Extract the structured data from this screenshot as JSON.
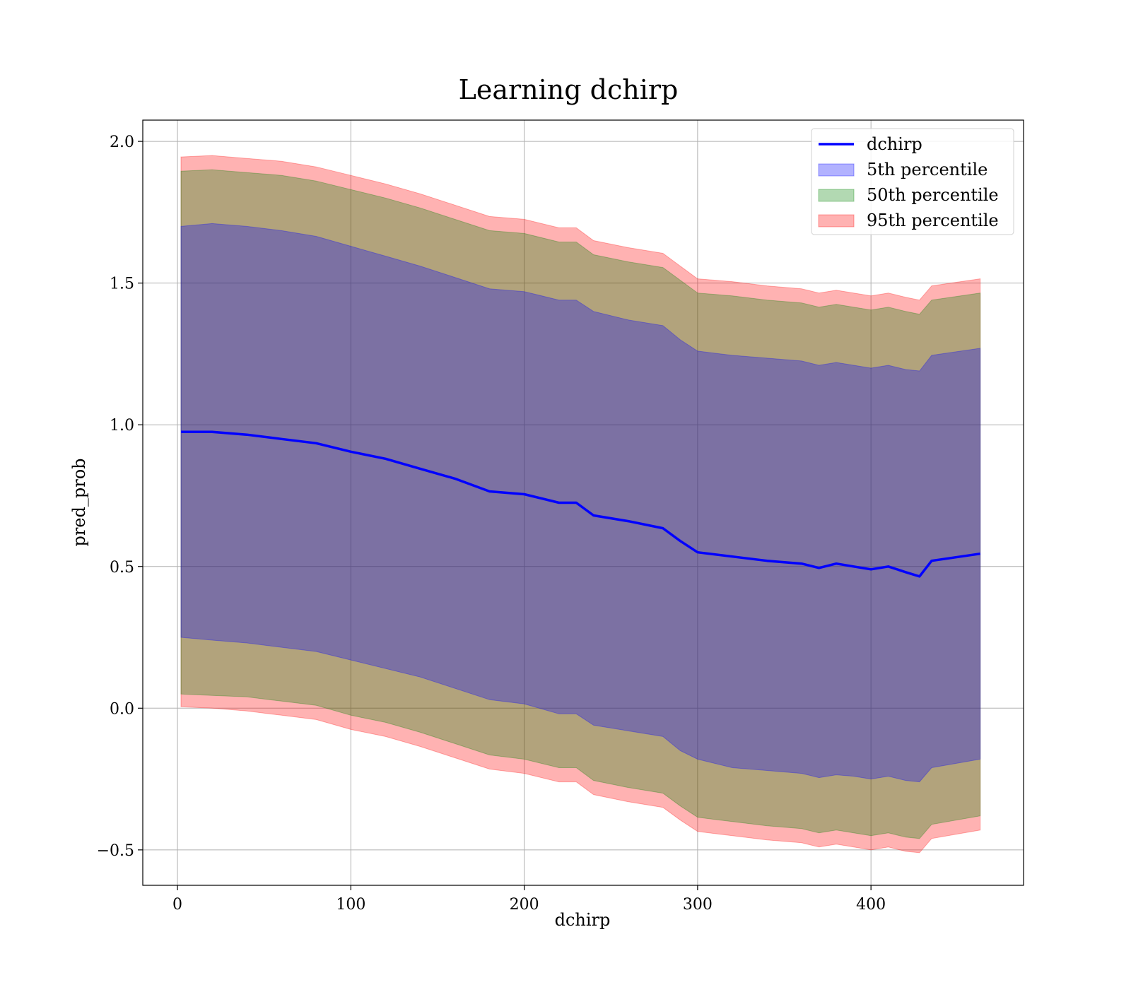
{
  "chart_data": {
    "type": "area",
    "title": "Learning dchirp",
    "xlabel": "dchirp",
    "ylabel": "pred_prob",
    "xlim": [
      -20,
      488
    ],
    "ylim": [
      -0.625,
      2.075
    ],
    "xticks": [
      0,
      100,
      200,
      300,
      400
    ],
    "yticks": [
      -0.5,
      0.0,
      0.5,
      1.0,
      1.5,
      2.0
    ],
    "xtick_labels": [
      "0",
      "100",
      "200",
      "300",
      "400"
    ],
    "ytick_labels": [
      "−0.5",
      "0.0",
      "0.5",
      "1.0",
      "1.5",
      "2.0"
    ],
    "grid": true,
    "legend_position": "top-right",
    "legend": [
      {
        "label": "dchirp",
        "kind": "line",
        "color": "#0000ff"
      },
      {
        "label": "5th percentile",
        "kind": "patch",
        "color": "#0000ff"
      },
      {
        "label": "50th percentile",
        "kind": "patch",
        "color": "#008000"
      },
      {
        "label": "95th percentile",
        "kind": "patch",
        "color": "#ff0000"
      }
    ],
    "colors": {
      "line": "#0000ff",
      "band_5": "#0000ff",
      "band_50": "#008000",
      "band_95": "#ff0000"
    },
    "x": [
      2,
      20,
      40,
      60,
      80,
      100,
      120,
      140,
      160,
      180,
      200,
      220,
      230,
      240,
      260,
      280,
      290,
      300,
      320,
      340,
      360,
      370,
      380,
      390,
      400,
      410,
      420,
      428,
      435,
      463
    ],
    "line": [
      0.975,
      0.975,
      0.965,
      0.95,
      0.935,
      0.905,
      0.88,
      0.845,
      0.81,
      0.765,
      0.755,
      0.725,
      0.725,
      0.68,
      0.66,
      0.635,
      0.59,
      0.55,
      0.535,
      0.52,
      0.51,
      0.495,
      0.51,
      0.5,
      0.49,
      0.5,
      0.48,
      0.465,
      0.52,
      0.545
    ],
    "band_5": [
      {
        "upper": 1.7,
        "lower": 0.25
      },
      {
        "upper": 1.71,
        "lower": 0.24
      },
      {
        "upper": 1.7,
        "lower": 0.23
      },
      {
        "upper": 1.685,
        "lower": 0.215
      },
      {
        "upper": 1.665,
        "lower": 0.2
      },
      {
        "upper": 1.63,
        "lower": 0.17
      },
      {
        "upper": 1.595,
        "lower": 0.14
      },
      {
        "upper": 1.56,
        "lower": 0.11
      },
      {
        "upper": 1.52,
        "lower": 0.07
      },
      {
        "upper": 1.48,
        "lower": 0.03
      },
      {
        "upper": 1.47,
        "lower": 0.015
      },
      {
        "upper": 1.44,
        "lower": -0.02
      },
      {
        "upper": 1.44,
        "lower": -0.02
      },
      {
        "upper": 1.4,
        "lower": -0.06
      },
      {
        "upper": 1.37,
        "lower": -0.08
      },
      {
        "upper": 1.35,
        "lower": -0.1
      },
      {
        "upper": 1.3,
        "lower": -0.15
      },
      {
        "upper": 1.26,
        "lower": -0.18
      },
      {
        "upper": 1.245,
        "lower": -0.21
      },
      {
        "upper": 1.235,
        "lower": -0.22
      },
      {
        "upper": 1.225,
        "lower": -0.23
      },
      {
        "upper": 1.21,
        "lower": -0.245
      },
      {
        "upper": 1.22,
        "lower": -0.235
      },
      {
        "upper": 1.21,
        "lower": -0.24
      },
      {
        "upper": 1.2,
        "lower": -0.25
      },
      {
        "upper": 1.21,
        "lower": -0.24
      },
      {
        "upper": 1.195,
        "lower": -0.255
      },
      {
        "upper": 1.19,
        "lower": -0.26
      },
      {
        "upper": 1.245,
        "lower": -0.21
      },
      {
        "upper": 1.27,
        "lower": -0.18
      }
    ],
    "band_50": [
      {
        "upper": 1.895,
        "lower": 0.05
      },
      {
        "upper": 1.9,
        "lower": 0.045
      },
      {
        "upper": 1.89,
        "lower": 0.04
      },
      {
        "upper": 1.88,
        "lower": 0.025
      },
      {
        "upper": 1.86,
        "lower": 0.01
      },
      {
        "upper": 1.83,
        "lower": -0.025
      },
      {
        "upper": 1.8,
        "lower": -0.05
      },
      {
        "upper": 1.765,
        "lower": -0.085
      },
      {
        "upper": 1.725,
        "lower": -0.125
      },
      {
        "upper": 1.685,
        "lower": -0.165
      },
      {
        "upper": 1.675,
        "lower": -0.18
      },
      {
        "upper": 1.645,
        "lower": -0.21
      },
      {
        "upper": 1.645,
        "lower": -0.21
      },
      {
        "upper": 1.6,
        "lower": -0.255
      },
      {
        "upper": 1.575,
        "lower": -0.28
      },
      {
        "upper": 1.555,
        "lower": -0.3
      },
      {
        "upper": 1.51,
        "lower": -0.345
      },
      {
        "upper": 1.465,
        "lower": -0.385
      },
      {
        "upper": 1.455,
        "lower": -0.4
      },
      {
        "upper": 1.44,
        "lower": -0.415
      },
      {
        "upper": 1.43,
        "lower": -0.425
      },
      {
        "upper": 1.415,
        "lower": -0.44
      },
      {
        "upper": 1.425,
        "lower": -0.43
      },
      {
        "upper": 1.415,
        "lower": -0.44
      },
      {
        "upper": 1.405,
        "lower": -0.45
      },
      {
        "upper": 1.415,
        "lower": -0.44
      },
      {
        "upper": 1.4,
        "lower": -0.455
      },
      {
        "upper": 1.39,
        "lower": -0.46
      },
      {
        "upper": 1.44,
        "lower": -0.41
      },
      {
        "upper": 1.465,
        "lower": -0.38
      }
    ],
    "band_95": [
      {
        "upper": 1.945,
        "lower": 0.005
      },
      {
        "upper": 1.95,
        "lower": 0.0
      },
      {
        "upper": 1.94,
        "lower": -0.01
      },
      {
        "upper": 1.93,
        "lower": -0.025
      },
      {
        "upper": 1.91,
        "lower": -0.04
      },
      {
        "upper": 1.88,
        "lower": -0.075
      },
      {
        "upper": 1.85,
        "lower": -0.1
      },
      {
        "upper": 1.815,
        "lower": -0.135
      },
      {
        "upper": 1.775,
        "lower": -0.175
      },
      {
        "upper": 1.735,
        "lower": -0.215
      },
      {
        "upper": 1.725,
        "lower": -0.23
      },
      {
        "upper": 1.695,
        "lower": -0.26
      },
      {
        "upper": 1.695,
        "lower": -0.26
      },
      {
        "upper": 1.65,
        "lower": -0.305
      },
      {
        "upper": 1.625,
        "lower": -0.33
      },
      {
        "upper": 1.605,
        "lower": -0.35
      },
      {
        "upper": 1.56,
        "lower": -0.395
      },
      {
        "upper": 1.515,
        "lower": -0.435
      },
      {
        "upper": 1.505,
        "lower": -0.45
      },
      {
        "upper": 1.49,
        "lower": -0.465
      },
      {
        "upper": 1.48,
        "lower": -0.475
      },
      {
        "upper": 1.465,
        "lower": -0.49
      },
      {
        "upper": 1.475,
        "lower": -0.48
      },
      {
        "upper": 1.465,
        "lower": -0.49
      },
      {
        "upper": 1.455,
        "lower": -0.5
      },
      {
        "upper": 1.465,
        "lower": -0.49
      },
      {
        "upper": 1.45,
        "lower": -0.505
      },
      {
        "upper": 1.44,
        "lower": -0.51
      },
      {
        "upper": 1.49,
        "lower": -0.46
      },
      {
        "upper": 1.515,
        "lower": -0.43
      }
    ]
  }
}
